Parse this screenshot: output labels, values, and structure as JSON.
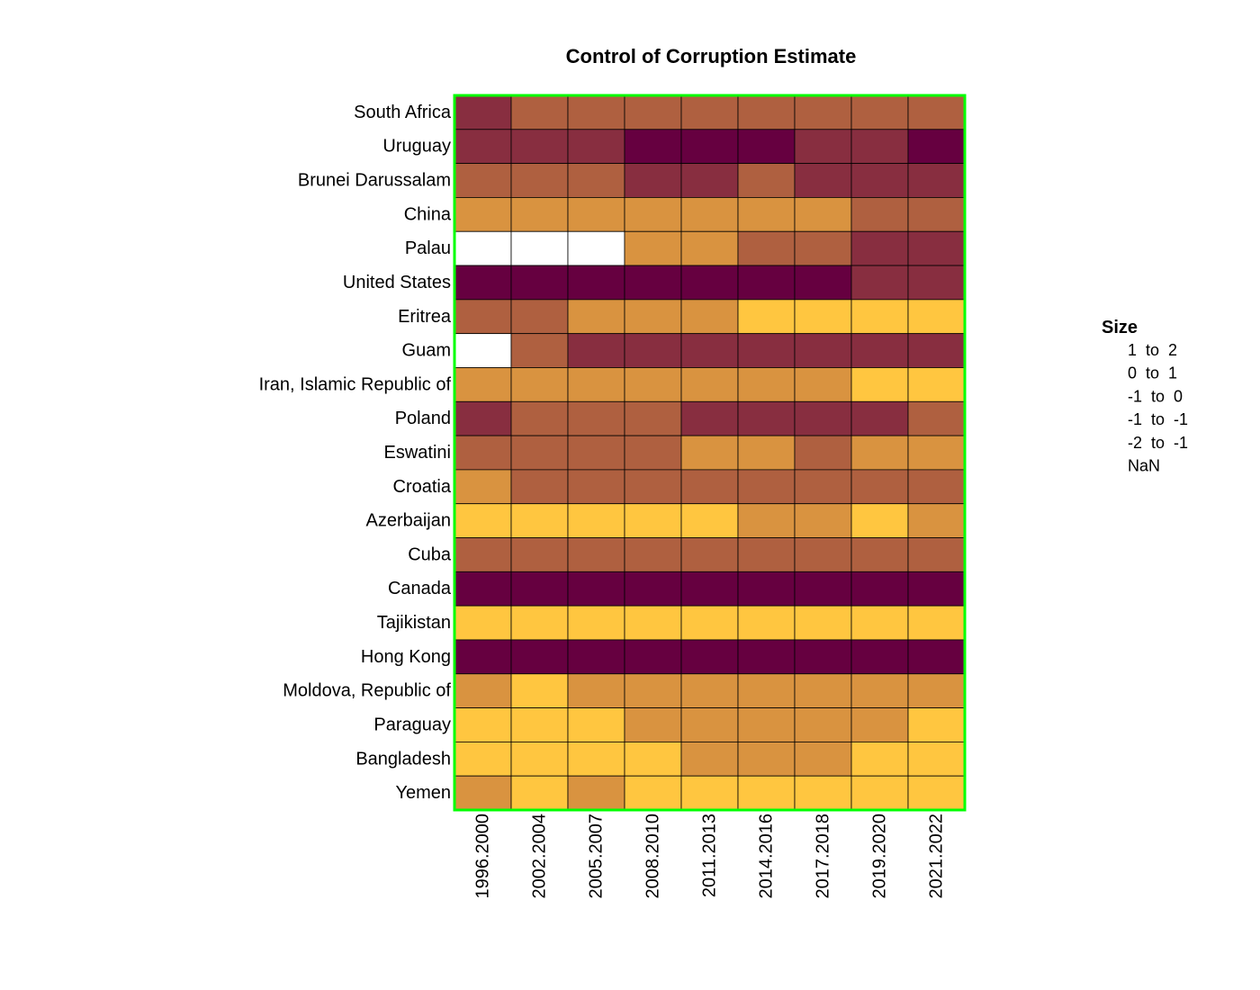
{
  "chart_data": {
    "type": "heatmap",
    "title": "Control of Corruption Estimate",
    "xlabel": "",
    "ylabel": "",
    "columns": [
      "1996.2000",
      "2002.2004",
      "2005.2007",
      "2008.2010",
      "2011.2013",
      "2014.2016",
      "2017.2018",
      "2019.2020",
      "2021.2022"
    ],
    "rows": [
      "South Africa",
      "Uruguay",
      "Brunei Darussalam",
      "China",
      "Palau",
      "United States",
      "Eritrea",
      "Guam",
      "Iran, Islamic Republic of",
      "Poland",
      "Eswatini",
      "Croatia",
      "Azerbaijan",
      "Cuba",
      "Canada",
      "Tajikistan",
      "Hong Kong",
      "Moldova, Republic of",
      "Paraguay",
      "Bangladesh",
      "Yemen"
    ],
    "legend": {
      "title": "Size",
      "placement": "right",
      "bins": [
        {
          "label": "1  to  2",
          "key": "b1to2",
          "color": "#660040"
        },
        {
          "label": "0  to  1",
          "key": "b0to1",
          "color": "#882E40"
        },
        {
          "label": "-1  to  0",
          "key": "bm1to0",
          "color": "#AF6040"
        },
        {
          "label": "-1  to  -1",
          "key": "bm1tom1",
          "color": "#D99340"
        },
        {
          "label": "-2  to  -1",
          "key": "bm2tom1",
          "color": "#FFC640"
        },
        {
          "label": "NaN",
          "key": "nan",
          "color": "#FFFFFF"
        }
      ]
    },
    "cells": [
      [
        "b0to1",
        "bm1to0",
        "bm1to0",
        "bm1to0",
        "bm1to0",
        "bm1to0",
        "bm1to0",
        "bm1to0",
        "bm1to0"
      ],
      [
        "b0to1",
        "b0to1",
        "b0to1",
        "b1to2",
        "b1to2",
        "b1to2",
        "b0to1",
        "b0to1",
        "b1to2"
      ],
      [
        "bm1to0",
        "bm1to0",
        "bm1to0",
        "b0to1",
        "b0to1",
        "bm1to0",
        "b0to1",
        "b0to1",
        "b0to1"
      ],
      [
        "bm1tom1",
        "bm1tom1",
        "bm1tom1",
        "bm1tom1",
        "bm1tom1",
        "bm1tom1",
        "bm1tom1",
        "bm1to0",
        "bm1to0"
      ],
      [
        "nan",
        "nan",
        "nan",
        "bm1tom1",
        "bm1tom1",
        "bm1to0",
        "bm1to0",
        "b0to1",
        "b0to1"
      ],
      [
        "b1to2",
        "b1to2",
        "b1to2",
        "b1to2",
        "b1to2",
        "b1to2",
        "b1to2",
        "b0to1",
        "b0to1"
      ],
      [
        "bm1to0",
        "bm1to0",
        "bm1tom1",
        "bm1tom1",
        "bm1tom1",
        "bm2tom1",
        "bm2tom1",
        "bm2tom1",
        "bm2tom1"
      ],
      [
        "nan",
        "bm1to0",
        "b0to1",
        "b0to1",
        "b0to1",
        "b0to1",
        "b0to1",
        "b0to1",
        "b0to1"
      ],
      [
        "bm1tom1",
        "bm1tom1",
        "bm1tom1",
        "bm1tom1",
        "bm1tom1",
        "bm1tom1",
        "bm1tom1",
        "bm2tom1",
        "bm2tom1"
      ],
      [
        "b0to1",
        "bm1to0",
        "bm1to0",
        "bm1to0",
        "b0to1",
        "b0to1",
        "b0to1",
        "b0to1",
        "bm1to0"
      ],
      [
        "bm1to0",
        "bm1to0",
        "bm1to0",
        "bm1to0",
        "bm1tom1",
        "bm1tom1",
        "bm1to0",
        "bm1tom1",
        "bm1tom1"
      ],
      [
        "bm1tom1",
        "bm1to0",
        "bm1to0",
        "bm1to0",
        "bm1to0",
        "bm1to0",
        "bm1to0",
        "bm1to0",
        "bm1to0"
      ],
      [
        "bm2tom1",
        "bm2tom1",
        "bm2tom1",
        "bm2tom1",
        "bm2tom1",
        "bm1tom1",
        "bm1tom1",
        "bm2tom1",
        "bm1tom1"
      ],
      [
        "bm1to0",
        "bm1to0",
        "bm1to0",
        "bm1to0",
        "bm1to0",
        "bm1to0",
        "bm1to0",
        "bm1to0",
        "bm1to0"
      ],
      [
        "b1to2",
        "b1to2",
        "b1to2",
        "b1to2",
        "b1to2",
        "b1to2",
        "b1to2",
        "b1to2",
        "b1to2"
      ],
      [
        "bm2tom1",
        "bm2tom1",
        "bm2tom1",
        "bm2tom1",
        "bm2tom1",
        "bm2tom1",
        "bm2tom1",
        "bm2tom1",
        "bm2tom1"
      ],
      [
        "b1to2",
        "b1to2",
        "b1to2",
        "b1to2",
        "b1to2",
        "b1to2",
        "b1to2",
        "b1to2",
        "b1to2"
      ],
      [
        "bm1tom1",
        "bm2tom1",
        "bm1tom1",
        "bm1tom1",
        "bm1tom1",
        "bm1tom1",
        "bm1tom1",
        "bm1tom1",
        "bm1tom1"
      ],
      [
        "bm2tom1",
        "bm2tom1",
        "bm2tom1",
        "bm1tom1",
        "bm1tom1",
        "bm1tom1",
        "bm1tom1",
        "bm1tom1",
        "bm2tom1"
      ],
      [
        "bm2tom1",
        "bm2tom1",
        "bm2tom1",
        "bm2tom1",
        "bm1tom1",
        "bm1tom1",
        "bm1tom1",
        "bm2tom1",
        "bm2tom1"
      ],
      [
        "bm1tom1",
        "bm2tom1",
        "bm1tom1",
        "bm2tom1",
        "bm2tom1",
        "bm2tom1",
        "bm2tom1",
        "bm2tom1",
        "bm2tom1"
      ]
    ],
    "frame_color": "#00FF00",
    "grid": true
  }
}
